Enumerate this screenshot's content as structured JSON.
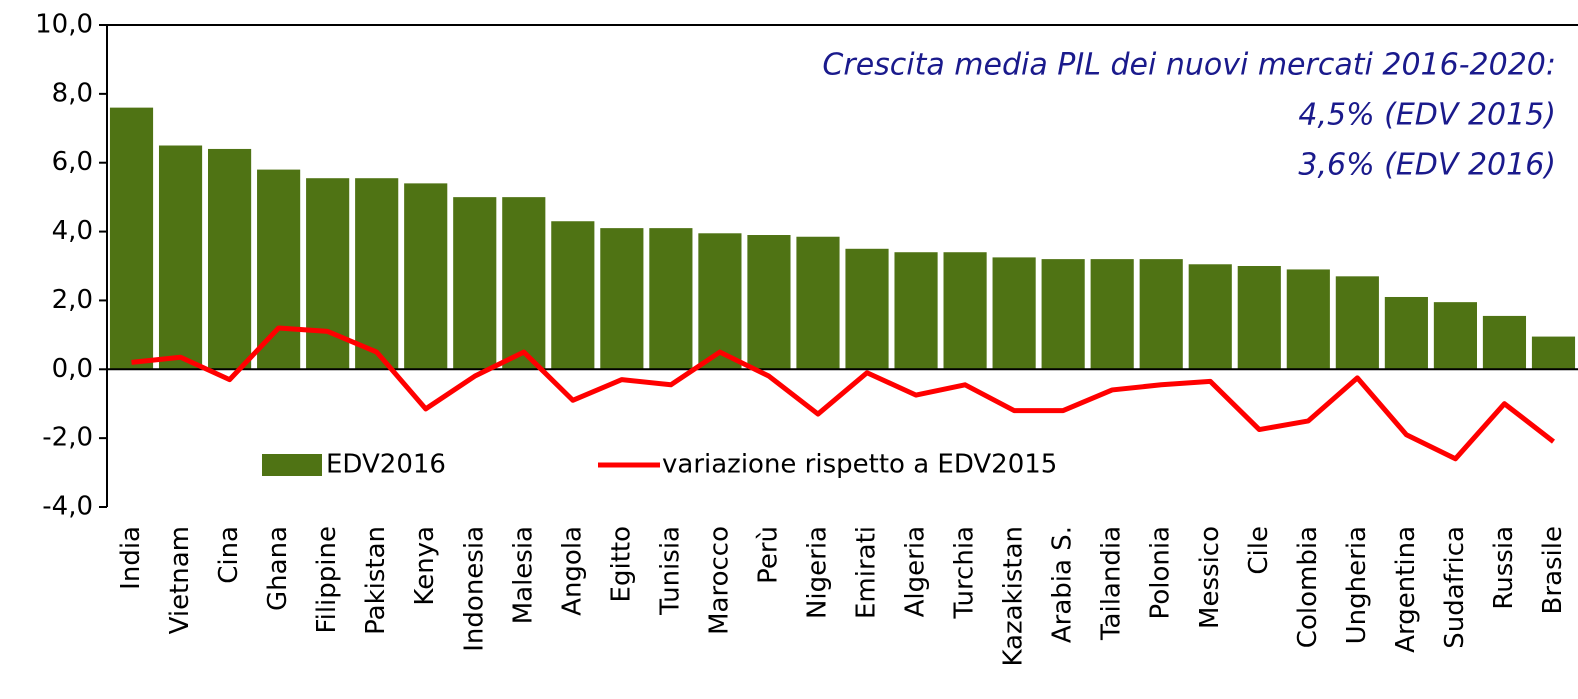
{
  "chart_data": {
    "type": "bar_line",
    "annotation": [
      "Crescita media PIL dei nuovi mercati 2016-2020:",
      "4,5% (EDV 2015)",
      "3,6% (EDV 2016)"
    ],
    "categories": [
      "India",
      "Vietnam",
      "Cina",
      "Ghana",
      "Filippine",
      "Pakistan",
      "Kenya",
      "Indonesia",
      "Malesia",
      "Angola",
      "Egitto",
      "Tunisia",
      "Marocco",
      "Perù",
      "Nigeria",
      "Emirati",
      "Algeria",
      "Turchia",
      "Kazakistan",
      "Arabia S.",
      "Tailandia",
      "Polonia",
      "Messico",
      "Cile",
      "Colombia",
      "Ungheria",
      "Argentina",
      "Sudafrica",
      "Russia",
      "Brasile"
    ],
    "series": [
      {
        "name": "EDV2016",
        "type": "bar",
        "color": "#4f7314",
        "values": [
          7.6,
          6.5,
          6.4,
          5.8,
          5.55,
          5.55,
          5.4,
          5.0,
          5.0,
          4.3,
          4.1,
          4.1,
          3.95,
          3.9,
          3.85,
          3.5,
          3.4,
          3.4,
          3.25,
          3.2,
          3.2,
          3.2,
          3.05,
          3.0,
          2.9,
          2.7,
          2.1,
          1.95,
          1.55,
          0.95
        ]
      },
      {
        "name": "variazione rispetto a EDV2015",
        "type": "line",
        "color": "#ff0000",
        "values": [
          0.2,
          0.35,
          -0.3,
          1.2,
          1.1,
          0.5,
          -1.15,
          -0.2,
          0.5,
          -0.9,
          -0.3,
          -0.45,
          0.5,
          -0.2,
          -1.3,
          -0.1,
          -0.75,
          -0.45,
          -1.2,
          -1.2,
          -0.6,
          -0.45,
          -0.35,
          -1.75,
          -1.5,
          -0.25,
          -1.9,
          -2.6,
          -1.0,
          -2.1
        ]
      }
    ],
    "ylim": [
      -4,
      10
    ],
    "yticks": [
      {
        "value": -4,
        "label": "-4,0"
      },
      {
        "value": -2,
        "label": "-2,0"
      },
      {
        "value": 0,
        "label": "0,0"
      },
      {
        "value": 2,
        "label": "2,0"
      },
      {
        "value": 4,
        "label": "4,0"
      },
      {
        "value": 6,
        "label": "6,0"
      },
      {
        "value": 8,
        "label": "8,0"
      },
      {
        "value": 10,
        "label": "10,0"
      }
    ],
    "legend": "bottom-left"
  }
}
